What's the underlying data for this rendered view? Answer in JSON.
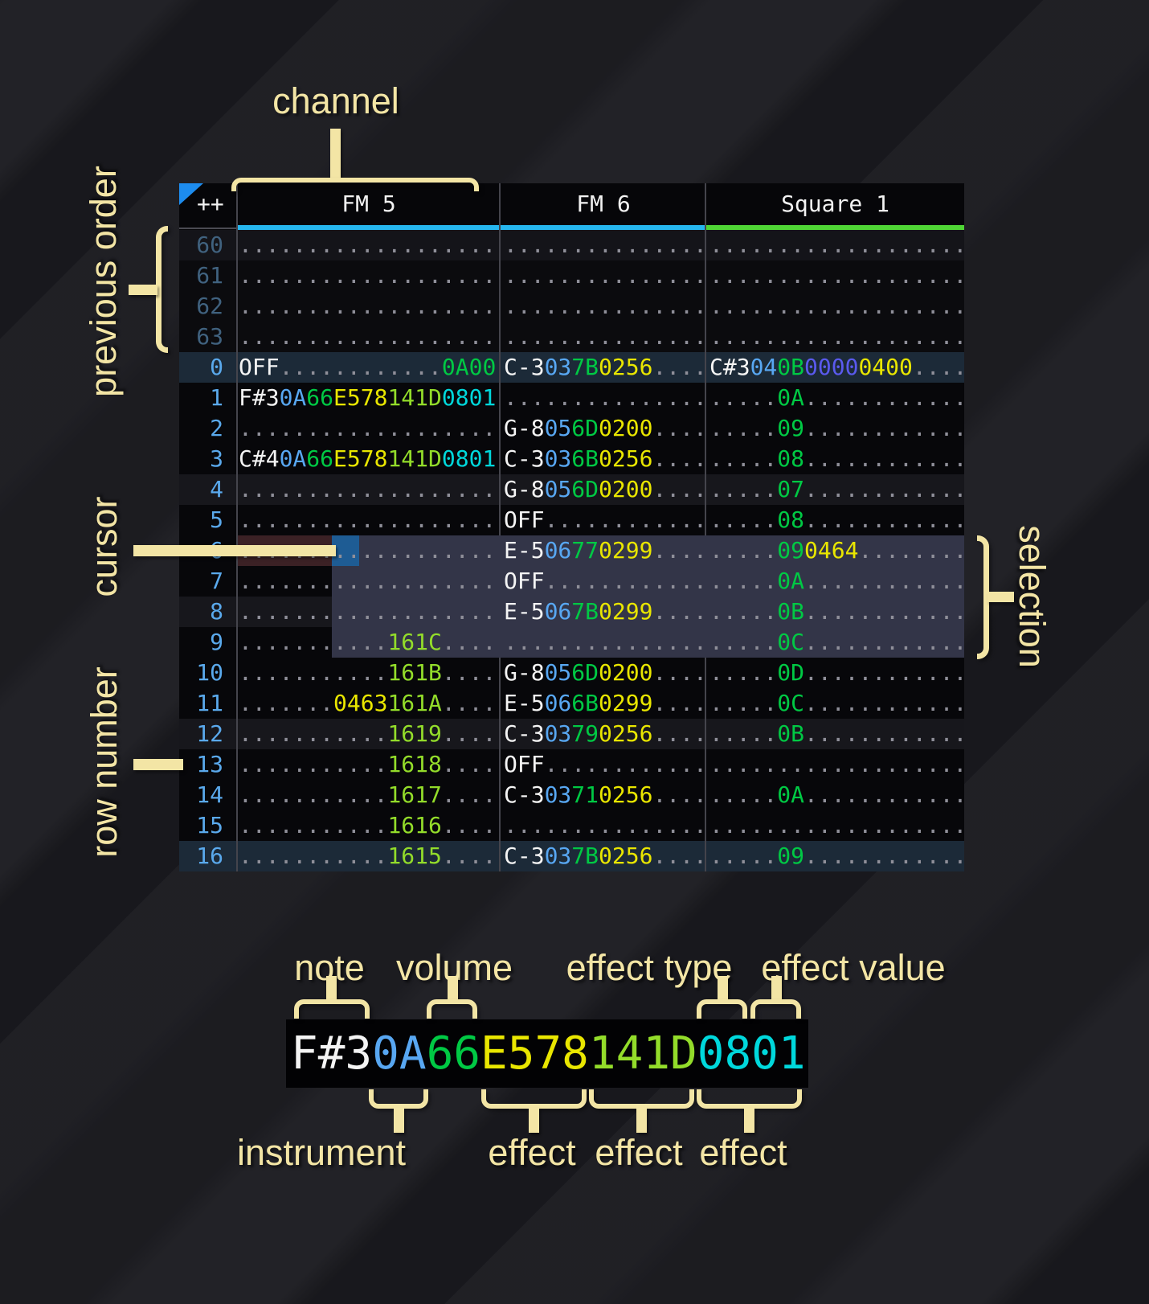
{
  "annotations": {
    "channel": "channel",
    "previous_order": "previous order",
    "cursor": "cursor",
    "row_number": "row number",
    "selection": "selection",
    "note": "note",
    "volume": "volume",
    "effect_type": "effect type",
    "effect_value": "effect value",
    "instrument": "instrument",
    "effect1": "effect",
    "effect2": "effect",
    "effect3": "effect"
  },
  "colors": {
    "annotation": "#f3e5a5",
    "note_text": "#f4f4f4",
    "instrument_text": "#58a7f2",
    "volume_text": "#00c944",
    "effect_yellow": "#e9e600",
    "effect_lime": "#93dc2a",
    "effect_cyan": "#00d8dc",
    "effect_indigo": "#5a5aee",
    "empty_dots": "#8f8f99",
    "row_number_current": "#5aa9ec",
    "row_number_previous": "#40627f",
    "underline_fm": "#26b6ee",
    "underline_square": "#4fd535",
    "cursor_block": "#1e5c94",
    "cursor_row": "#3b2125",
    "selection_bg": "#333548",
    "row_highlight": "#1c2a38",
    "corner_triangle": "#1d8cee"
  },
  "tracker": {
    "corner_label": "++",
    "channels": [
      {
        "name": "FM 5",
        "underline": "#26b6ee"
      },
      {
        "name": "FM 6",
        "underline": "#26b6ee"
      },
      {
        "name": "Square 1",
        "underline": "#4fd535"
      }
    ],
    "rows": [
      {
        "n": "60",
        "nc": "prev",
        "bg": "prevshade",
        "fm5": [
          [
            "...................",
            "d"
          ]
        ],
        "fm6": [
          [
            "...............",
            "d"
          ]
        ],
        "sq1": [
          [
            "...................",
            "d"
          ]
        ]
      },
      {
        "n": "61",
        "nc": "prev",
        "bg": "prev",
        "fm5": [
          [
            "...................",
            "d"
          ]
        ],
        "fm6": [
          [
            "...............",
            "d"
          ]
        ],
        "sq1": [
          [
            "...................",
            "d"
          ]
        ]
      },
      {
        "n": "62",
        "nc": "prev",
        "bg": "prev",
        "fm5": [
          [
            "...................",
            "d"
          ]
        ],
        "fm6": [
          [
            "...............",
            "d"
          ]
        ],
        "sq1": [
          [
            "...................",
            "d"
          ]
        ]
      },
      {
        "n": "63",
        "nc": "prev",
        "bg": "prev",
        "fm5": [
          [
            "...................",
            "d"
          ]
        ],
        "fm6": [
          [
            "...............",
            "d"
          ]
        ],
        "sq1": [
          [
            "...................",
            "d"
          ]
        ]
      },
      {
        "n": "0",
        "nc": "cur",
        "bg": "hl",
        "fm5": [
          [
            "OFF",
            "w"
          ],
          [
            "............",
            "d"
          ],
          [
            "0A00",
            "v"
          ]
        ],
        "fm6": [
          [
            "C-3",
            "w"
          ],
          [
            "03",
            "i"
          ],
          [
            "7B",
            "v"
          ],
          [
            "0256",
            "y"
          ],
          [
            "....",
            "d"
          ]
        ],
        "sq1": [
          [
            "C#3",
            "w"
          ],
          [
            "04",
            "i"
          ],
          [
            "0B",
            "v"
          ],
          [
            "0000",
            "n"
          ],
          [
            "0400",
            "y"
          ],
          [
            "....",
            "d"
          ]
        ]
      },
      {
        "n": "1",
        "nc": "cur",
        "bg": "norm",
        "fm5": [
          [
            "F#3",
            "w"
          ],
          [
            "0A",
            "i"
          ],
          [
            "66",
            "v"
          ],
          [
            "E578",
            "y"
          ],
          [
            "141D",
            "l"
          ],
          [
            "0801",
            "c"
          ]
        ],
        "fm6": [
          [
            "...............",
            "d"
          ]
        ],
        "sq1": [
          [
            ".....",
            "d"
          ],
          [
            "0A",
            "v"
          ],
          [
            "............",
            "d"
          ]
        ]
      },
      {
        "n": "2",
        "nc": "cur",
        "bg": "norm",
        "fm5": [
          [
            "...................",
            "d"
          ]
        ],
        "fm6": [
          [
            "G-8",
            "w"
          ],
          [
            "05",
            "i"
          ],
          [
            "6D",
            "v"
          ],
          [
            "0200",
            "y"
          ],
          [
            "....",
            "d"
          ]
        ],
        "sq1": [
          [
            ".....",
            "d"
          ],
          [
            "09",
            "v"
          ],
          [
            "............",
            "d"
          ]
        ]
      },
      {
        "n": "3",
        "nc": "cur",
        "bg": "norm",
        "fm5": [
          [
            "C#4",
            "w"
          ],
          [
            "0A",
            "i"
          ],
          [
            "66",
            "v"
          ],
          [
            "E578",
            "y"
          ],
          [
            "141D",
            "l"
          ],
          [
            "0801",
            "c"
          ]
        ],
        "fm6": [
          [
            "C-3",
            "w"
          ],
          [
            "03",
            "i"
          ],
          [
            "6B",
            "v"
          ],
          [
            "0256",
            "y"
          ],
          [
            "....",
            "d"
          ]
        ],
        "sq1": [
          [
            ".....",
            "d"
          ],
          [
            "08",
            "v"
          ],
          [
            "............",
            "d"
          ]
        ]
      },
      {
        "n": "4",
        "nc": "cur",
        "bg": "shade",
        "fm5": [
          [
            "...................",
            "d"
          ]
        ],
        "fm6": [
          [
            "G-8",
            "w"
          ],
          [
            "05",
            "i"
          ],
          [
            "6D",
            "v"
          ],
          [
            "0200",
            "y"
          ],
          [
            "....",
            "d"
          ]
        ],
        "sq1": [
          [
            ".....",
            "d"
          ],
          [
            "07",
            "v"
          ],
          [
            "............",
            "d"
          ]
        ]
      },
      {
        "n": "5",
        "nc": "cur",
        "bg": "norm",
        "fm5": [
          [
            "...................",
            "d"
          ]
        ],
        "fm6": [
          [
            "OFF",
            "w"
          ],
          [
            "............",
            "d"
          ]
        ],
        "sq1": [
          [
            ".....",
            "d"
          ],
          [
            "08",
            "v"
          ],
          [
            "............",
            "d"
          ]
        ]
      },
      {
        "n": "6",
        "nc": "cur",
        "bg": "norm",
        "fm5": [
          [
            "...................",
            "d"
          ]
        ],
        "fm6": [
          [
            "E-5",
            "w"
          ],
          [
            "06",
            "i"
          ],
          [
            "77",
            "v"
          ],
          [
            "0299",
            "y"
          ],
          [
            "....",
            "d"
          ]
        ],
        "sq1": [
          [
            ".....",
            "d"
          ],
          [
            "09",
            "v"
          ],
          [
            "0464",
            "y"
          ],
          [
            "........",
            "d"
          ]
        ]
      },
      {
        "n": "7",
        "nc": "cur",
        "bg": "norm",
        "fm5": [
          [
            "...................",
            "d"
          ]
        ],
        "fm6": [
          [
            "OFF",
            "w"
          ],
          [
            "............",
            "d"
          ]
        ],
        "sq1": [
          [
            ".....",
            "d"
          ],
          [
            "0A",
            "v"
          ],
          [
            "............",
            "d"
          ]
        ]
      },
      {
        "n": "8",
        "nc": "cur",
        "bg": "shade",
        "fm5": [
          [
            "...................",
            "d"
          ]
        ],
        "fm6": [
          [
            "E-5",
            "w"
          ],
          [
            "06",
            "i"
          ],
          [
            "7B",
            "v"
          ],
          [
            "0299",
            "y"
          ],
          [
            "....",
            "d"
          ]
        ],
        "sq1": [
          [
            ".....",
            "d"
          ],
          [
            "0B",
            "v"
          ],
          [
            "............",
            "d"
          ]
        ]
      },
      {
        "n": "9",
        "nc": "cur",
        "bg": "norm",
        "fm5": [
          [
            "...........",
            "d"
          ],
          [
            "161C",
            "l"
          ],
          [
            "....",
            "d"
          ]
        ],
        "fm6": [
          [
            "...............",
            "d"
          ]
        ],
        "sq1": [
          [
            ".....",
            "d"
          ],
          [
            "0C",
            "v"
          ],
          [
            "............",
            "d"
          ]
        ]
      },
      {
        "n": "10",
        "nc": "cur",
        "bg": "norm",
        "fm5": [
          [
            "...........",
            "d"
          ],
          [
            "161B",
            "l"
          ],
          [
            "....",
            "d"
          ]
        ],
        "fm6": [
          [
            "G-8",
            "w"
          ],
          [
            "05",
            "i"
          ],
          [
            "6D",
            "v"
          ],
          [
            "0200",
            "y"
          ],
          [
            "....",
            "d"
          ]
        ],
        "sq1": [
          [
            ".....",
            "d"
          ],
          [
            "0D",
            "v"
          ],
          [
            "............",
            "d"
          ]
        ]
      },
      {
        "n": "11",
        "nc": "cur",
        "bg": "norm",
        "fm5": [
          [
            ".......",
            "d"
          ],
          [
            "0463",
            "y"
          ],
          [
            "161A",
            "l"
          ],
          [
            "....",
            "d"
          ]
        ],
        "fm6": [
          [
            "E-5",
            "w"
          ],
          [
            "06",
            "i"
          ],
          [
            "6B",
            "v"
          ],
          [
            "0299",
            "y"
          ],
          [
            "....",
            "d"
          ]
        ],
        "sq1": [
          [
            ".....",
            "d"
          ],
          [
            "0C",
            "v"
          ],
          [
            "............",
            "d"
          ]
        ]
      },
      {
        "n": "12",
        "nc": "cur",
        "bg": "shade",
        "fm5": [
          [
            "...........",
            "d"
          ],
          [
            "1619",
            "l"
          ],
          [
            "....",
            "d"
          ]
        ],
        "fm6": [
          [
            "C-3",
            "w"
          ],
          [
            "03",
            "i"
          ],
          [
            "79",
            "v"
          ],
          [
            "0256",
            "y"
          ],
          [
            "....",
            "d"
          ]
        ],
        "sq1": [
          [
            ".....",
            "d"
          ],
          [
            "0B",
            "v"
          ],
          [
            "............",
            "d"
          ]
        ]
      },
      {
        "n": "13",
        "nc": "cur",
        "bg": "norm",
        "fm5": [
          [
            "...........",
            "d"
          ],
          [
            "1618",
            "l"
          ],
          [
            "....",
            "d"
          ]
        ],
        "fm6": [
          [
            "OFF",
            "w"
          ],
          [
            "............",
            "d"
          ]
        ],
        "sq1": [
          [
            "...................",
            "d"
          ]
        ]
      },
      {
        "n": "14",
        "nc": "cur",
        "bg": "norm",
        "fm5": [
          [
            "...........",
            "d"
          ],
          [
            "1617",
            "l"
          ],
          [
            "....",
            "d"
          ]
        ],
        "fm6": [
          [
            "C-3",
            "w"
          ],
          [
            "03",
            "i"
          ],
          [
            "71",
            "v"
          ],
          [
            "0256",
            "y"
          ],
          [
            "....",
            "d"
          ]
        ],
        "sq1": [
          [
            ".....",
            "d"
          ],
          [
            "0A",
            "v"
          ],
          [
            "............",
            "d"
          ]
        ]
      },
      {
        "n": "15",
        "nc": "cur",
        "bg": "norm",
        "fm5": [
          [
            "...........",
            "d"
          ],
          [
            "1616",
            "l"
          ],
          [
            "....",
            "d"
          ]
        ],
        "fm6": [
          [
            "...............",
            "d"
          ]
        ],
        "sq1": [
          [
            "...................",
            "d"
          ]
        ]
      },
      {
        "n": "16",
        "nc": "cur",
        "bg": "hl",
        "fm5": [
          [
            "...........",
            "d"
          ],
          [
            "1615",
            "l"
          ],
          [
            "....",
            "d"
          ]
        ],
        "fm6": [
          [
            "C-3",
            "w"
          ],
          [
            "03",
            "i"
          ],
          [
            "7B",
            "v"
          ],
          [
            "0256",
            "y"
          ],
          [
            "....",
            "d"
          ]
        ],
        "sq1": [
          [
            ".....",
            "d"
          ],
          [
            "09",
            "v"
          ],
          [
            "............",
            "d"
          ]
        ]
      }
    ]
  },
  "example": {
    "segments": [
      {
        "text": "F#3",
        "role": "note",
        "key": "w"
      },
      {
        "text": "0A",
        "role": "instrument",
        "key": "i"
      },
      {
        "text": "66",
        "role": "volume",
        "key": "v"
      },
      {
        "text": "E578",
        "role": "effect",
        "key": "y"
      },
      {
        "text": "141D",
        "role": "effect",
        "key": "l"
      },
      {
        "text": "0801",
        "role": "effect",
        "key": "c"
      }
    ]
  }
}
